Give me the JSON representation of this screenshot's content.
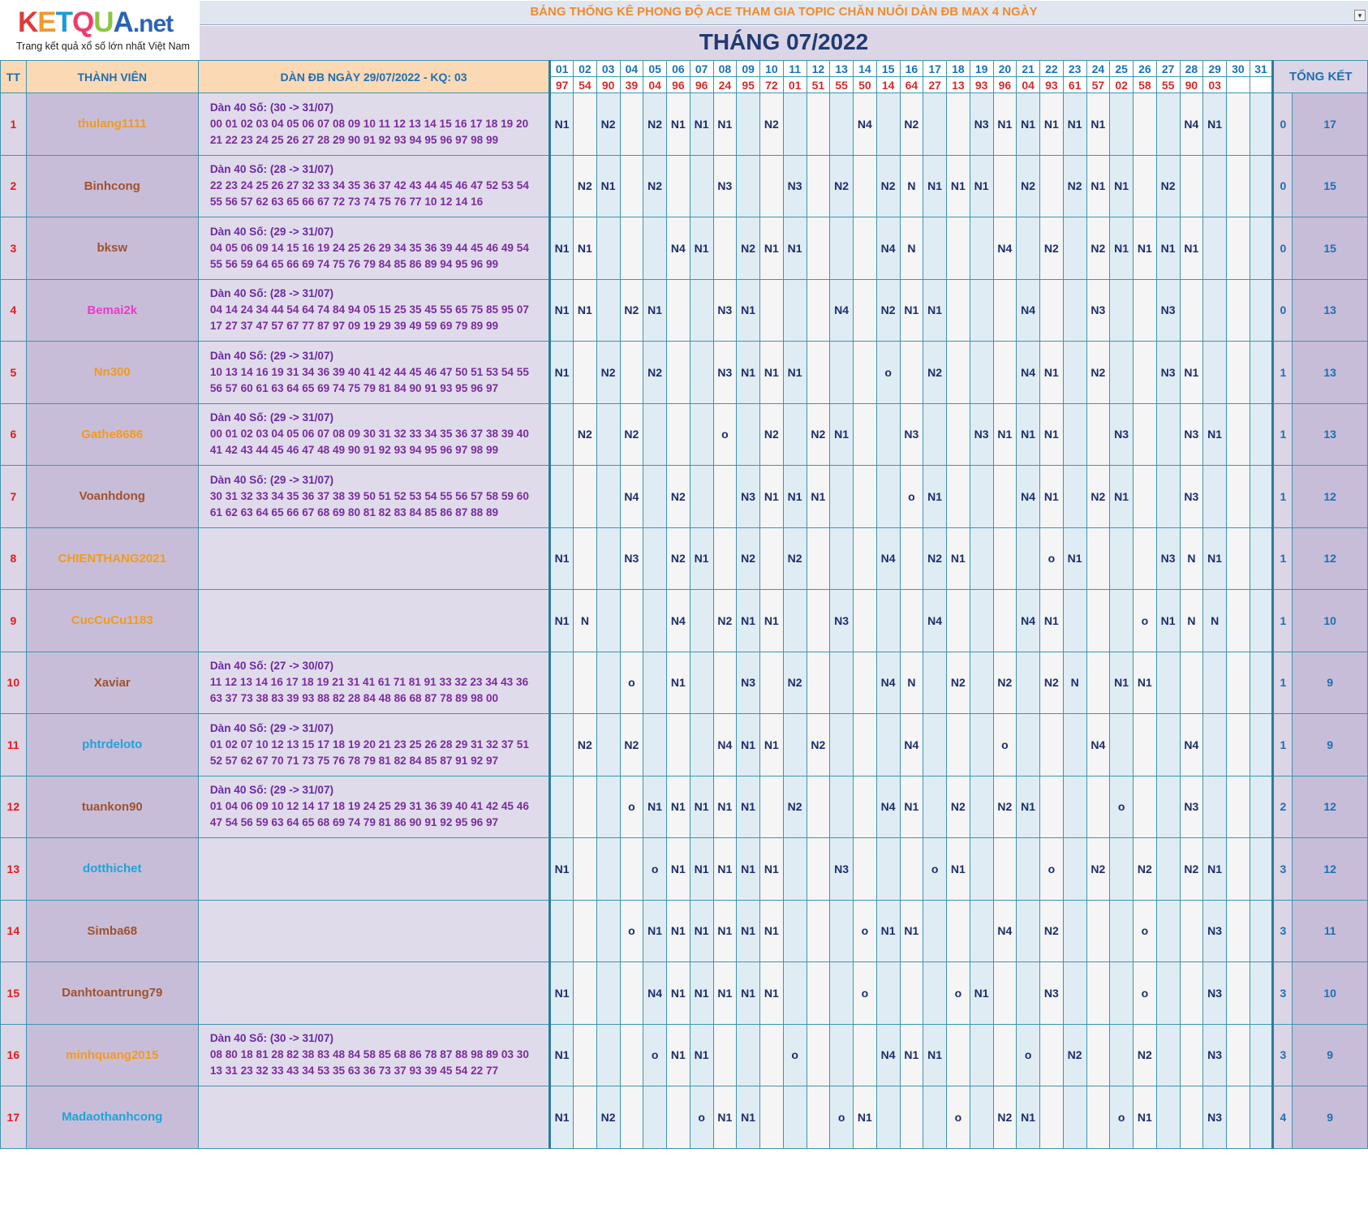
{
  "logo": {
    "brand": "KETQUA",
    "brand_suffix": ".net",
    "subtitle": "Trang kết quả xổ số lớn nhất Việt Nam",
    "letter_colors": [
      "#e0393b",
      "#f09a2b",
      "#1c9bd6",
      "#ef3b6b",
      "#8bc63f",
      "#2b63b8"
    ]
  },
  "banner": "BẢNG THỐNG KÊ PHONG ĐỘ ACE THAM GIA TOPIC CHĂN NUÔI DÀN ĐB MAX 4 NGÀY",
  "month": "THÁNG 07/2022",
  "headers": {
    "tt": "TT",
    "member": "THÀNH VIÊN",
    "dan": "DÀN ĐB NGÀY 29/07/2022 - KQ: 03",
    "summary": "TỔNG KẾT"
  },
  "days": [
    "01",
    "02",
    "03",
    "04",
    "05",
    "06",
    "07",
    "08",
    "09",
    "10",
    "11",
    "12",
    "13",
    "14",
    "15",
    "16",
    "17",
    "18",
    "19",
    "20",
    "21",
    "22",
    "23",
    "24",
    "25",
    "26",
    "27",
    "28",
    "29",
    "30",
    "31"
  ],
  "results": [
    "97",
    "54",
    "90",
    "39",
    "04",
    "96",
    "96",
    "24",
    "95",
    "72",
    "01",
    "51",
    "55",
    "50",
    "14",
    "64",
    "27",
    "13",
    "93",
    "96",
    "04",
    "93",
    "61",
    "57",
    "02",
    "58",
    "55",
    "90",
    "03",
    "",
    ""
  ],
  "rows": [
    {
      "tt": "1",
      "name": "thulang1111",
      "color": "#f39a1e",
      "dan": [
        "Dàn 40 Số: (30 -> 31/07)",
        "00 01 02 03 04 05 06 07 08 09 10 11 12 13 14 15 16 17 18 19 20",
        "21 22 23 24 25 26 27 28 29 90 91 92 93 94 95 96 97 98 99"
      ],
      "cells": {
        "1": "N1",
        "3": "N2",
        "5": "N2",
        "6": "N1",
        "7": "N1",
        "8": "N1",
        "10": "N2",
        "14": "N4",
        "16": "N2",
        "19": "N3",
        "20": "N1",
        "21": "N1",
        "22": "N1",
        "23": "N1",
        "24": "N1",
        "28": "N4",
        "29": "N1"
      },
      "s1": "0",
      "s2": "17"
    },
    {
      "tt": "2",
      "name": "Binhcong",
      "color": "#a0522d",
      "dan": [
        "Dàn 40 Số: (28 -> 31/07)",
        "22 23 24 25 26 27 32 33 34 35 36 37 42 43 44 45 46 47 52 53 54",
        "55 56 57 62 63 65 66 67 72 73 74 75 76 77 10 12 14 16"
      ],
      "cells": {
        "2": "N2",
        "3": "N1",
        "5": "N2",
        "8": "N3",
        "11": "N3",
        "13": "N2",
        "15": "N2",
        "16": "N",
        "17": "N1",
        "18": "N1",
        "19": "N1",
        "21": "N2",
        "23": "N2",
        "24": "N1",
        "25": "N1",
        "27": "N2"
      },
      "s1": "0",
      "s2": "15"
    },
    {
      "tt": "3",
      "name": "bksw",
      "color": "#a0522d",
      "dan": [
        "Dàn 40 Số: (29 -> 31/07)",
        "04 05 06 09 14 15 16 19 24 25 26 29 34 35 36 39 44 45 46 49 54",
        "55 56 59 64 65 66 69 74 75 76 79 84 85 86 89 94 95 96 99"
      ],
      "cells": {
        "1": "N1",
        "2": "N1",
        "6": "N4",
        "7": "N1",
        "9": "N2",
        "10": "N1",
        "11": "N1",
        "15": "N4",
        "16": "N",
        "20": "N4",
        "22": "N2",
        "24": "N2",
        "25": "N1",
        "26": "N1",
        "27": "N1",
        "28": "N1"
      },
      "s1": "0",
      "s2": "15"
    },
    {
      "tt": "4",
      "name": "Bemai2k",
      "color": "#e83cc8",
      "dan": [
        "Dàn 40 Số: (28 -> 31/07)",
        "04 14 24 34 44 54 64 74 84 94 05 15 25 35 45 55 65 75 85 95 07",
        "17 27 37 47 57 67 77 87 97 09 19 29 39 49 59 69 79 89 99"
      ],
      "cells": {
        "1": "N1",
        "2": "N1",
        "4": "N2",
        "5": "N1",
        "8": "N3",
        "9": "N1",
        "13": "N4",
        "15": "N2",
        "16": "N1",
        "17": "N1",
        "21": "N4",
        "24": "N3",
        "27": "N3"
      },
      "s1": "0",
      "s2": "13"
    },
    {
      "tt": "5",
      "name": "Nn300",
      "color": "#f39a1e",
      "dan": [
        "Dàn 40 Số: (29 -> 31/07)",
        "10 13 14 16 19 31 34 36 39 40 41 42 44 45 46 47 50 51 53 54 55",
        "56 57 60 61 63 64 65 69 74 75 79 81 84 90 91 93 95 96 97"
      ],
      "cells": {
        "1": "N1",
        "3": "N2",
        "5": "N2",
        "8": "N3",
        "9": "N1",
        "10": "N1",
        "11": "N1",
        "15": "o",
        "17": "N2",
        "21": "N4",
        "22": "N1",
        "24": "N2",
        "27": "N3",
        "28": "N1"
      },
      "s1": "1",
      "s2": "13"
    },
    {
      "tt": "6",
      "name": "Gathe8686",
      "color": "#f39a1e",
      "dan": [
        "Dàn 40 Số: (29 -> 31/07)",
        "00 01 02 03 04 05 06 07 08 09 30 31 32 33 34 35 36 37 38 39 40",
        "41 42 43 44 45 46 47 48 49 90 91 92 93 94 95 96 97 98 99"
      ],
      "cells": {
        "2": "N2",
        "4": "N2",
        "8": "o",
        "10": "N2",
        "12": "N2",
        "13": "N1",
        "16": "N3",
        "19": "N3",
        "20": "N1",
        "21": "N1",
        "22": "N1",
        "25": "N3",
        "28": "N3",
        "29": "N1"
      },
      "s1": "1",
      "s2": "13"
    },
    {
      "tt": "7",
      "name": "Voanhdong",
      "color": "#a0522d",
      "dan": [
        "Dàn 40 Số: (29 -> 31/07)",
        "30 31 32 33 34 35 36 37 38 39 50 51 52 53 54 55 56 57 58 59 60",
        "61 62 63 64 65 66 67 68 69 80 81 82 83 84 85 86 87 88 89"
      ],
      "cells": {
        "4": "N4",
        "6": "N2",
        "9": "N3",
        "10": "N1",
        "11": "N1",
        "12": "N1",
        "16": "o",
        "17": "N1",
        "21": "N4",
        "22": "N1",
        "24": "N2",
        "25": "N1",
        "28": "N3"
      },
      "s1": "1",
      "s2": "12"
    },
    {
      "tt": "8",
      "name": "CHIENTHANG2021",
      "color": "#f39a1e",
      "dan": [
        "",
        "",
        ""
      ],
      "cells": {
        "1": "N1",
        "4": "N3",
        "6": "N2",
        "7": "N1",
        "9": "N2",
        "11": "N2",
        "15": "N4",
        "17": "N2",
        "18": "N1",
        "22": "o",
        "23": "N1",
        "27": "N3",
        "28": "N",
        "29": "N1"
      },
      "s1": "1",
      "s2": "12"
    },
    {
      "tt": "9",
      "name": "CucCuCu1183",
      "color": "#f39a1e",
      "dan": [
        "",
        "",
        ""
      ],
      "cells": {
        "1": "N1",
        "2": "N",
        "6": "N4",
        "8": "N2",
        "9": "N1",
        "10": "N1",
        "13": "N3",
        "17": "N4",
        "21": "N4",
        "22": "N1",
        "26": "o",
        "27": "N1",
        "28": "N",
        "29": "N"
      },
      "s1": "1",
      "s2": "10"
    },
    {
      "tt": "10",
      "name": "Xaviar",
      "color": "#a0522d",
      "dan": [
        "Dàn 40 Số: (27 -> 30/07)",
        "11 12 13 14 16 17 18 19 21 31 41 61 71 81 91 33 32 23 34 43 36",
        "63 37 73 38 83 39 93 88 82 28 84 48 86 68 87 78 89 98 00"
      ],
      "cells": {
        "4": "o",
        "6": "N1",
        "9": "N3",
        "11": "N2",
        "15": "N4",
        "16": "N",
        "18": "N2",
        "20": "N2",
        "22": "N2",
        "23": "N",
        "25": "N1",
        "26": "N1"
      },
      "s1": "1",
      "s2": "9"
    },
    {
      "tt": "11",
      "name": "phtrdeloto",
      "color": "#1ea4d8",
      "dan": [
        "Dàn 40 Số: (29 -> 31/07)",
        "01 02 07 10 12 13 15 17 18 19 20 21 23 25 26 28 29 31 32 37 51",
        "52 57 62 67 70 71 73 75 76 78 79 81 82 84 85 87 91 92 97"
      ],
      "cells": {
        "2": "N2",
        "4": "N2",
        "8": "N4",
        "9": "N1",
        "10": "N1",
        "12": "N2",
        "16": "N4",
        "20": "o",
        "24": "N4",
        "28": "N4"
      },
      "s1": "1",
      "s2": "9"
    },
    {
      "tt": "12",
      "name": "tuankon90",
      "color": "#a0522d",
      "dan": [
        "Dàn 40 Số: (29 -> 31/07)",
        "01 04 06 09 10 12 14 17 18 19 24 25 29 31 36 39 40 41 42 45 46",
        "47 54 56 59 63 64 65 68 69 74 79 81 86 90 91 92 95 96 97"
      ],
      "cells": {
        "4": "o",
        "5": "N1",
        "6": "N1",
        "7": "N1",
        "8": "N1",
        "9": "N1",
        "11": "N2",
        "15": "N4",
        "16": "N1",
        "18": "N2",
        "20": "N2",
        "21": "N1",
        "25": "o",
        "28": "N3"
      },
      "s1": "2",
      "s2": "12"
    },
    {
      "tt": "13",
      "name": "dotthichet",
      "color": "#1ea4d8",
      "dan": [
        "",
        "",
        ""
      ],
      "cells": {
        "1": "N1",
        "5": "o",
        "6": "N1",
        "7": "N1",
        "8": "N1",
        "9": "N1",
        "10": "N1",
        "13": "N3",
        "17": "o",
        "18": "N1",
        "22": "o",
        "24": "N2",
        "26": "N2",
        "28": "N2",
        "29": "N1"
      },
      "s1": "3",
      "s2": "12"
    },
    {
      "tt": "14",
      "name": "Simba68",
      "color": "#a0522d",
      "dan": [
        "",
        "",
        ""
      ],
      "cells": {
        "4": "o",
        "5": "N1",
        "6": "N1",
        "7": "N1",
        "8": "N1",
        "9": "N1",
        "10": "N1",
        "14": "o",
        "15": "N1",
        "16": "N1",
        "20": "N4",
        "22": "N2",
        "26": "o",
        "29": "N3"
      },
      "s1": "3",
      "s2": "11"
    },
    {
      "tt": "15",
      "name": "Danhtoantrung79",
      "color": "#a0522d",
      "dan": [
        "",
        "",
        ""
      ],
      "cells": {
        "1": "N1",
        "5": "N4",
        "6": "N1",
        "7": "N1",
        "8": "N1",
        "9": "N1",
        "10": "N1",
        "14": "o",
        "18": "o",
        "19": "N1",
        "22": "N3",
        "26": "o",
        "29": "N3"
      },
      "s1": "3",
      "s2": "10"
    },
    {
      "tt": "16",
      "name": "minhquang2015",
      "color": "#f39a1e",
      "dan": [
        "Dàn 40 Số: (30 -> 31/07)",
        "08 80 18 81 28 82 38 83 48 84 58 85 68 86 78 87 88 98 89 03 30",
        "13 31 23 32 33 43 34 53 35 63 36 73 37 93 39 45 54 22 77"
      ],
      "cells": {
        "1": "N1",
        "5": "o",
        "6": "N1",
        "7": "N1",
        "11": "o",
        "15": "N4",
        "16": "N1",
        "17": "N1",
        "21": "o",
        "23": "N2",
        "26": "N2",
        "29": "N3"
      },
      "s1": "3",
      "s2": "9"
    },
    {
      "tt": "17",
      "name": "Madaothanhcong",
      "color": "#1ea4d8",
      "dan": [
        "",
        "",
        ""
      ],
      "cells": {
        "1": "N1",
        "3": "N2",
        "7": "o",
        "8": "N1",
        "9": "N1",
        "13": "o",
        "14": "N1",
        "18": "o",
        "20": "N2",
        "21": "N1",
        "25": "o",
        "26": "N1",
        "29": "N3"
      },
      "s1": "4",
      "s2": "9"
    }
  ]
}
